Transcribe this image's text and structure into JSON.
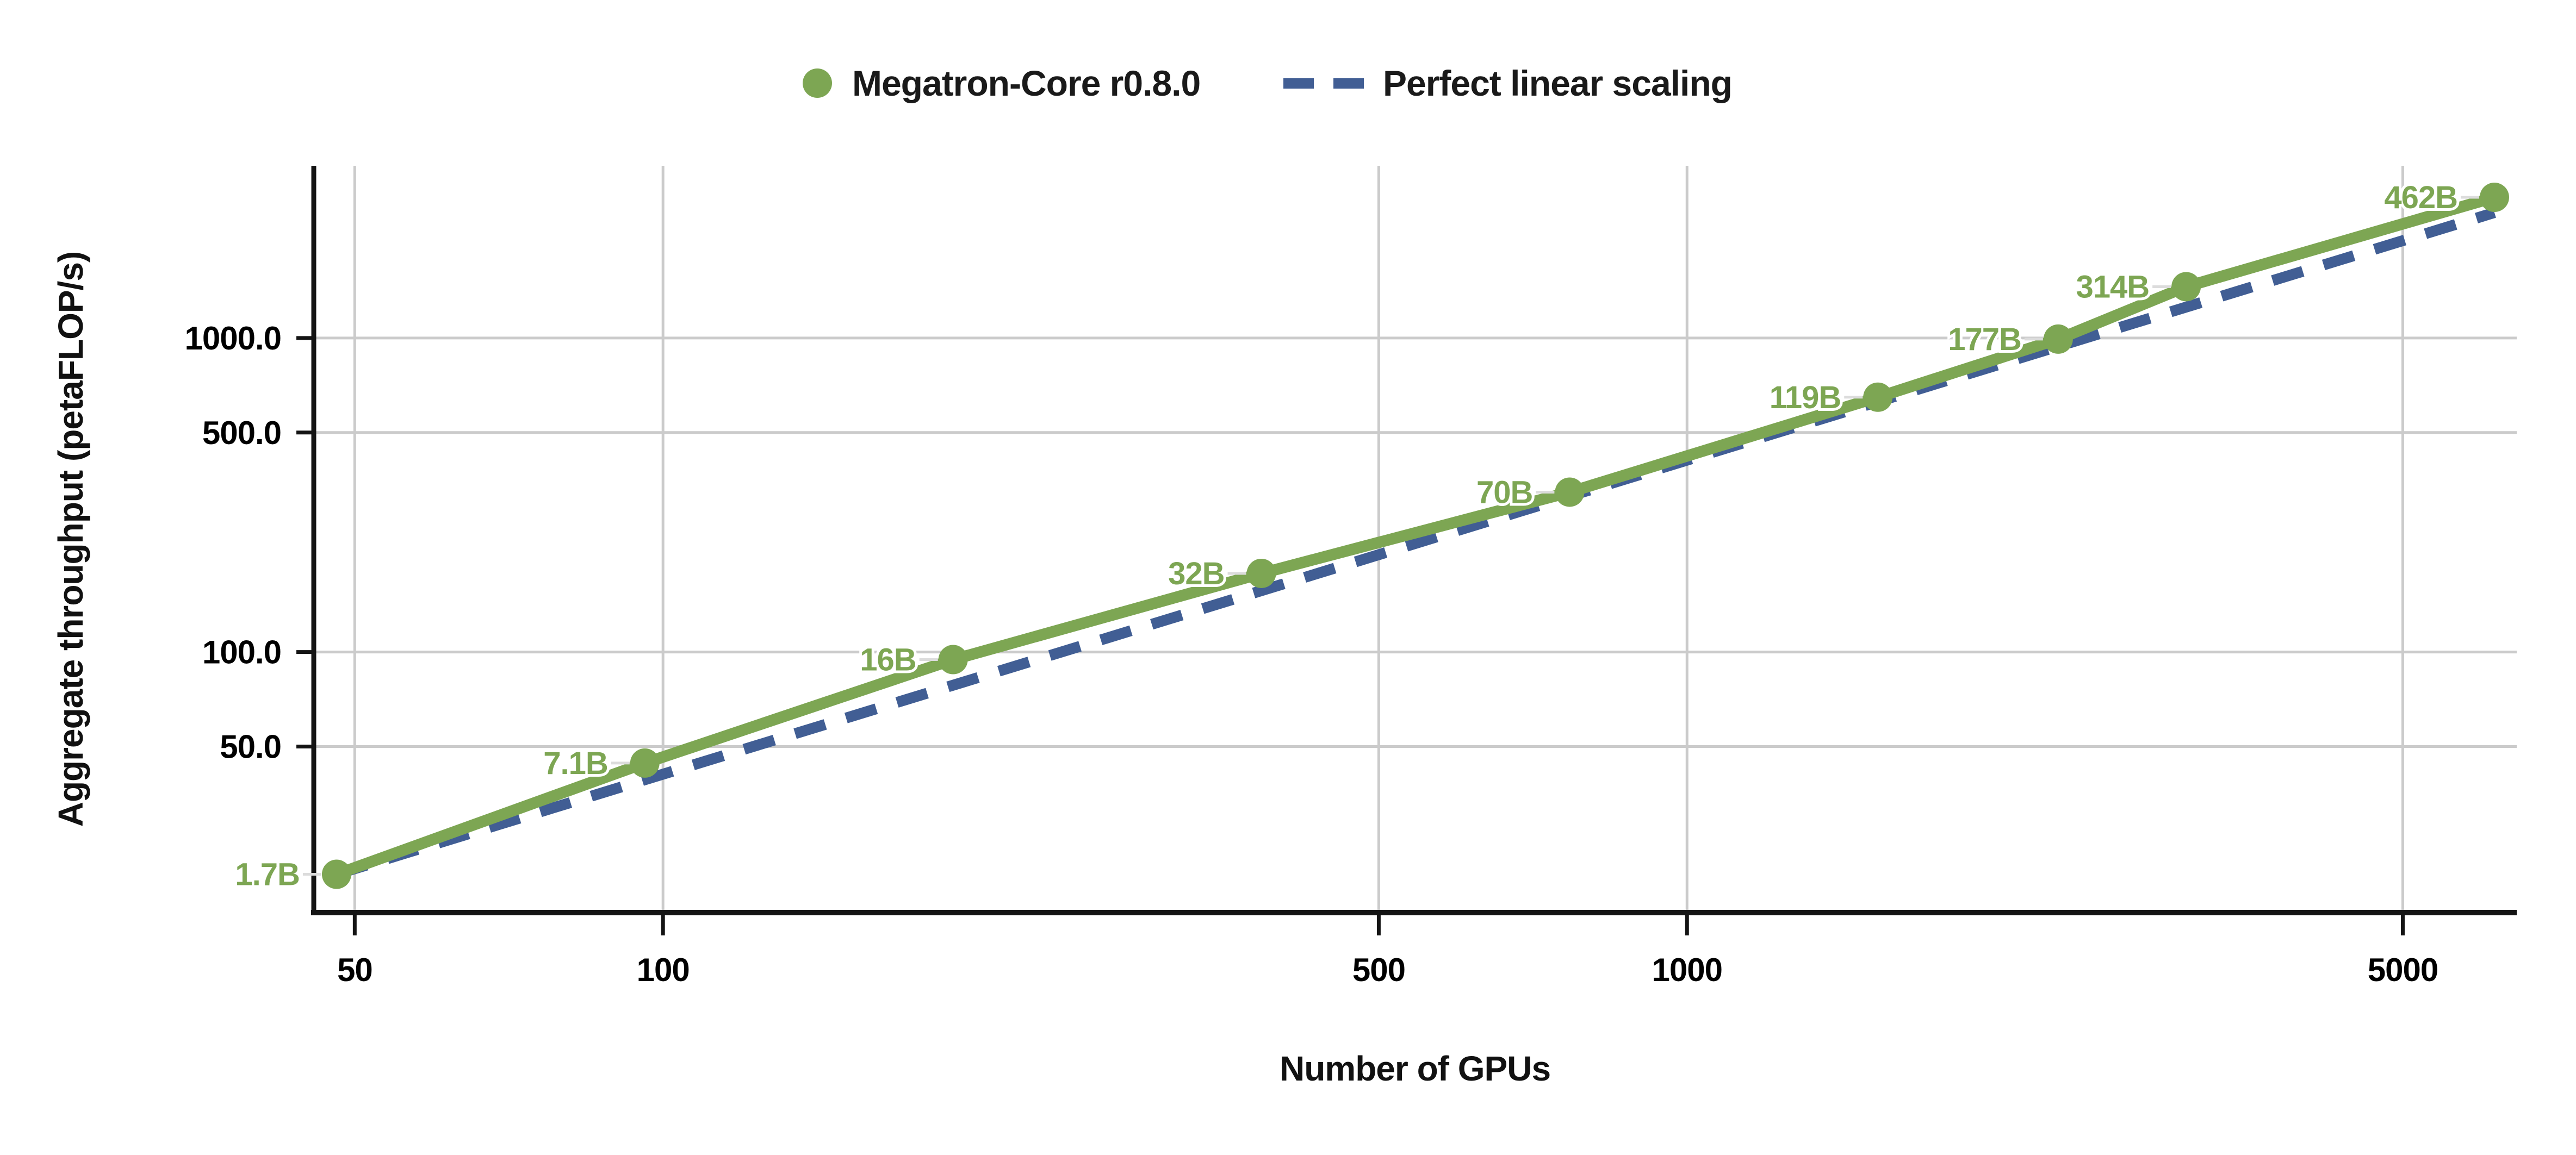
{
  "chart_data": {
    "type": "line",
    "title": "",
    "xlabel": "Number of GPUs",
    "ylabel": "Aggregate throughput (petaFLOP/s)",
    "x_scale": "log",
    "y_scale": "log",
    "xlim": [
      45.6,
      6460
    ],
    "ylim": [
      14.8,
      3536
    ],
    "x_ticks": [
      50,
      100,
      500,
      1000,
      5000
    ],
    "x_tick_labels": [
      "50",
      "100",
      "500",
      "1000",
      "5000"
    ],
    "y_ticks": [
      50,
      100,
      500,
      1000
    ],
    "y_tick_labels": [
      "50.0",
      "100.0",
      "500.0",
      "1000.0"
    ],
    "grid": true,
    "legend_position": "top-center",
    "series": [
      {
        "name": "Megatron-Core r0.8.0",
        "style": "solid-line-with-markers",
        "color": "#7DA653",
        "points": [
          {
            "label": "1.7B",
            "x": 48,
            "y": 19.6
          },
          {
            "label": "7.1B",
            "x": 96,
            "y": 44.3
          },
          {
            "label": "16B",
            "x": 192,
            "y": 94.6
          },
          {
            "label": "32B",
            "x": 384,
            "y": 178
          },
          {
            "label": "70B",
            "x": 768,
            "y": 323
          },
          {
            "label": "119B",
            "x": 1536,
            "y": 648
          },
          {
            "label": "177B",
            "x": 2304,
            "y": 992
          },
          {
            "label": "314B",
            "x": 3072,
            "y": 1457
          },
          {
            "label": "462B",
            "x": 6144,
            "y": 2806
          }
        ]
      },
      {
        "name": "Perfect linear scaling",
        "style": "dashed-line",
        "color": "#415E94",
        "points": [
          {
            "x": 48,
            "y": 19.6
          },
          {
            "x": 6144,
            "y": 2508.8
          }
        ]
      }
    ],
    "colors": {
      "series_green": "#7DA653",
      "series_blue": "#415E94",
      "grid": "#CBCBCB",
      "leader": "#DCDCDC",
      "axis": "#141414",
      "text": "#000000"
    }
  }
}
